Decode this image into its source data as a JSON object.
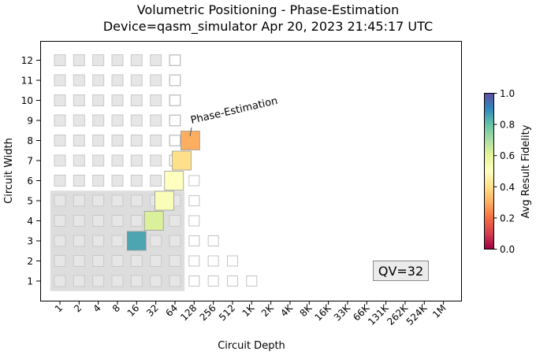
{
  "chart_data": {
    "type": "heatmap",
    "title_line1": "Volumetric Positioning - Phase-Estimation",
    "title_line2": "Device=qasm_simulator  Apr 20, 2023 21:45:17 UTC",
    "xlabel": "Circuit Depth",
    "ylabel": "Circuit Width",
    "x_ticks": [
      "1",
      "2",
      "4",
      "8",
      "16",
      "32",
      "64",
      "128",
      "256",
      "512",
      "1K",
      "2K",
      "4K",
      "8K",
      "16K",
      "33K",
      "66K",
      "131K",
      "262K",
      "524K",
      "1M"
    ],
    "y_ticks": [
      "1",
      "2",
      "3",
      "4",
      "5",
      "6",
      "7",
      "8",
      "9",
      "10",
      "11",
      "12"
    ],
    "qv_label": "QV=32",
    "annotation": "Phase-Estimation",
    "colorbar": {
      "label": "Avg Result Fidelity",
      "range": [
        0.0,
        1.0
      ],
      "ticks": [
        "0.0",
        "0.2",
        "0.4",
        "0.6",
        "0.8",
        "1.0"
      ]
    },
    "background_grid": {
      "max_width": 12,
      "max_depth_log2": 6
    },
    "outline_cells": [
      {
        "x": 7,
        "w": 1
      },
      {
        "x": 8,
        "w": 1
      },
      {
        "x": 9,
        "w": 1
      },
      {
        "x": 10,
        "w": 1
      },
      {
        "x": 7,
        "w": 2
      },
      {
        "x": 8,
        "w": 2
      },
      {
        "x": 9,
        "w": 2
      },
      {
        "x": 7,
        "w": 3
      },
      {
        "x": 8,
        "w": 3
      },
      {
        "x": 7,
        "w": 4
      },
      {
        "x": 7,
        "w": 5
      },
      {
        "x": 7,
        "w": 6
      },
      {
        "x": 6,
        "w": 7
      },
      {
        "x": 6,
        "w": 8
      },
      {
        "x": 6,
        "w": 9
      },
      {
        "x": 6,
        "w": 10
      },
      {
        "x": 6,
        "w": 11
      },
      {
        "x": 6,
        "w": 12
      }
    ],
    "qv_region": {
      "max_depth_log2": 6.5,
      "max_width": 5.5
    },
    "results": [
      {
        "width": 3,
        "depth_log2": 4.0,
        "fidelity": 0.85
      },
      {
        "width": 4,
        "depth_log2": 4.9,
        "fidelity": 0.62
      },
      {
        "width": 5,
        "depth_log2": 5.45,
        "fidelity": 0.52
      },
      {
        "width": 6,
        "depth_log2": 5.95,
        "fidelity": 0.5
      },
      {
        "width": 7,
        "depth_log2": 6.35,
        "fidelity": 0.4
      },
      {
        "width": 8,
        "depth_log2": 6.8,
        "fidelity": 0.3
      }
    ]
  }
}
